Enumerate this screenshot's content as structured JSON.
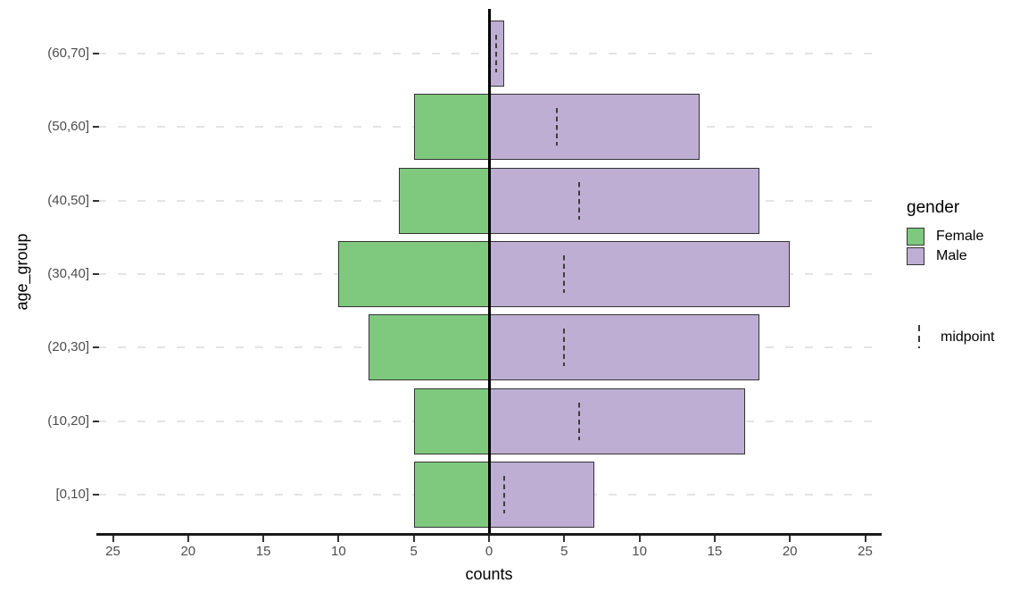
{
  "chart_data": {
    "type": "bar",
    "subtype": "population-pyramid",
    "orientation": "horizontal",
    "title": "",
    "xlabel": "counts",
    "ylabel": "age_group",
    "categories_top_to_bottom": [
      "(60,70]",
      "(50,60]",
      "(40,50]",
      "(30,40]",
      "(20,30]",
      "(10,20]",
      "[0,10]"
    ],
    "series": [
      {
        "name": "Female",
        "side": "left",
        "color": "#7FC97F",
        "values": [
          0,
          5,
          6,
          10,
          8,
          5,
          5
        ]
      },
      {
        "name": "Male",
        "side": "right",
        "color": "#BEAED4",
        "values": [
          1,
          14,
          18,
          20,
          18,
          17,
          7
        ]
      }
    ],
    "midpoints": [
      0.5,
      4.5,
      6,
      5,
      5,
      6,
      1
    ],
    "x_ticks": {
      "values": [
        -25,
        -20,
        -15,
        -10,
        -5,
        0,
        5,
        10,
        15,
        20,
        25
      ],
      "labels": [
        "25",
        "20",
        "15",
        "10",
        "5",
        "0",
        "5",
        "10",
        "15",
        "20",
        "25"
      ]
    },
    "xlim": [
      -25.9,
      25.9
    ],
    "grid": "horizontal-dashed",
    "legend_position": "right"
  },
  "legend": {
    "gender": {
      "title": "gender",
      "items": [
        {
          "label": "Female",
          "color": "#7FC97F"
        },
        {
          "label": "Male",
          "color": "#BEAED4"
        }
      ]
    },
    "midpoint": {
      "label": "midpoint"
    }
  },
  "colors": {
    "female": "#7FC97F",
    "male": "#BEAED4",
    "bar_stroke": "#333333",
    "zero_line": "#000000",
    "gridline": "#e4e4e4",
    "axis_text": "#4d4d4d",
    "axis_title": "#000000",
    "background": "#ffffff"
  }
}
